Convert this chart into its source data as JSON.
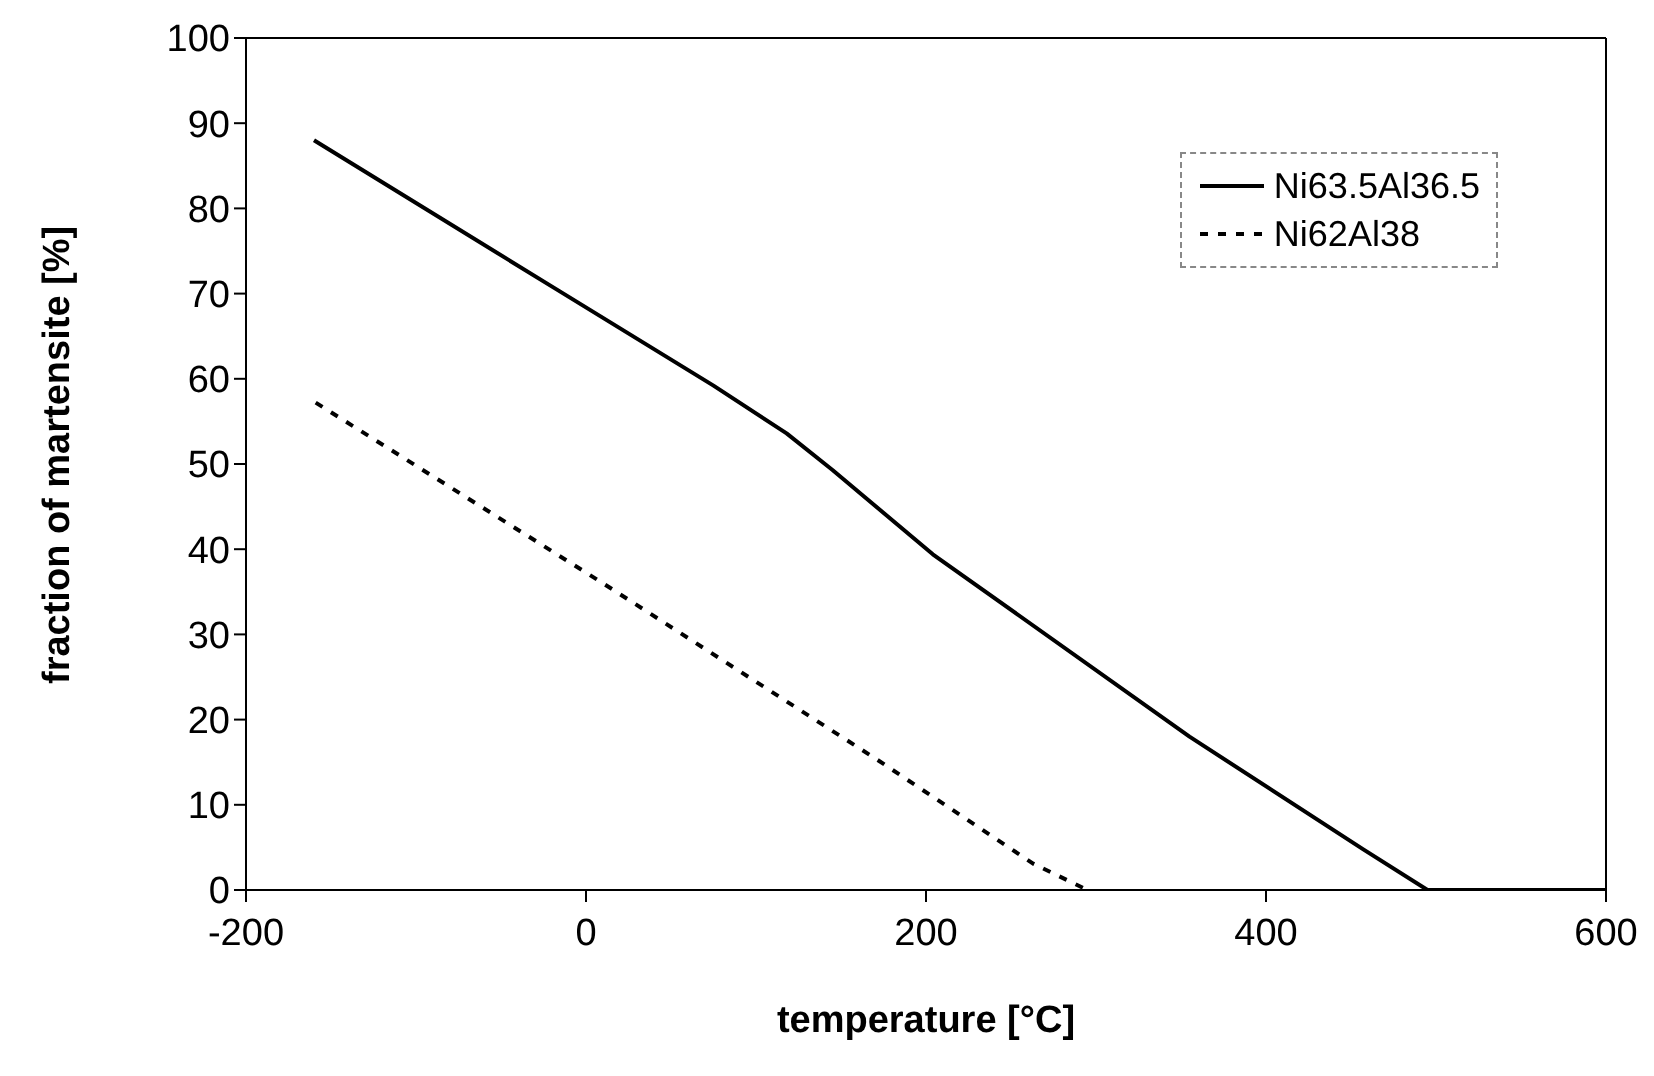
{
  "chart_data": {
    "type": "line",
    "xlabel": "temperature [°C]",
    "ylabel": "fraction of martensite [%]",
    "xlim": [
      -200,
      600
    ],
    "xticks": [
      -200,
      0,
      200,
      400,
      600
    ],
    "ylim": [
      0,
      100
    ],
    "yticks": [
      0,
      10,
      20,
      30,
      40,
      50,
      60,
      70,
      80,
      90,
      100
    ],
    "grid": false,
    "legend": "top right",
    "marker": "none",
    "series": [
      {
        "name": "Ni63.5Al36.5",
        "color": "#000000",
        "line_style": "solid",
        "x": [
          -160,
          -19,
          75,
          118,
          145,
          204,
          355,
          457,
          495,
          516,
          600
        ],
        "values": [
          88,
          70.7,
          59.2,
          53.6,
          49.3,
          39.4,
          18,
          4.8,
          0,
          0,
          0
        ]
      },
      {
        "name": "Ni62Al38",
        "color": "#000000",
        "line_style": "dashed",
        "x": [
          -159,
          10,
          172,
          263,
          295
        ],
        "values": [
          57.2,
          36,
          15.2,
          3.1,
          0
        ]
      }
    ]
  }
}
